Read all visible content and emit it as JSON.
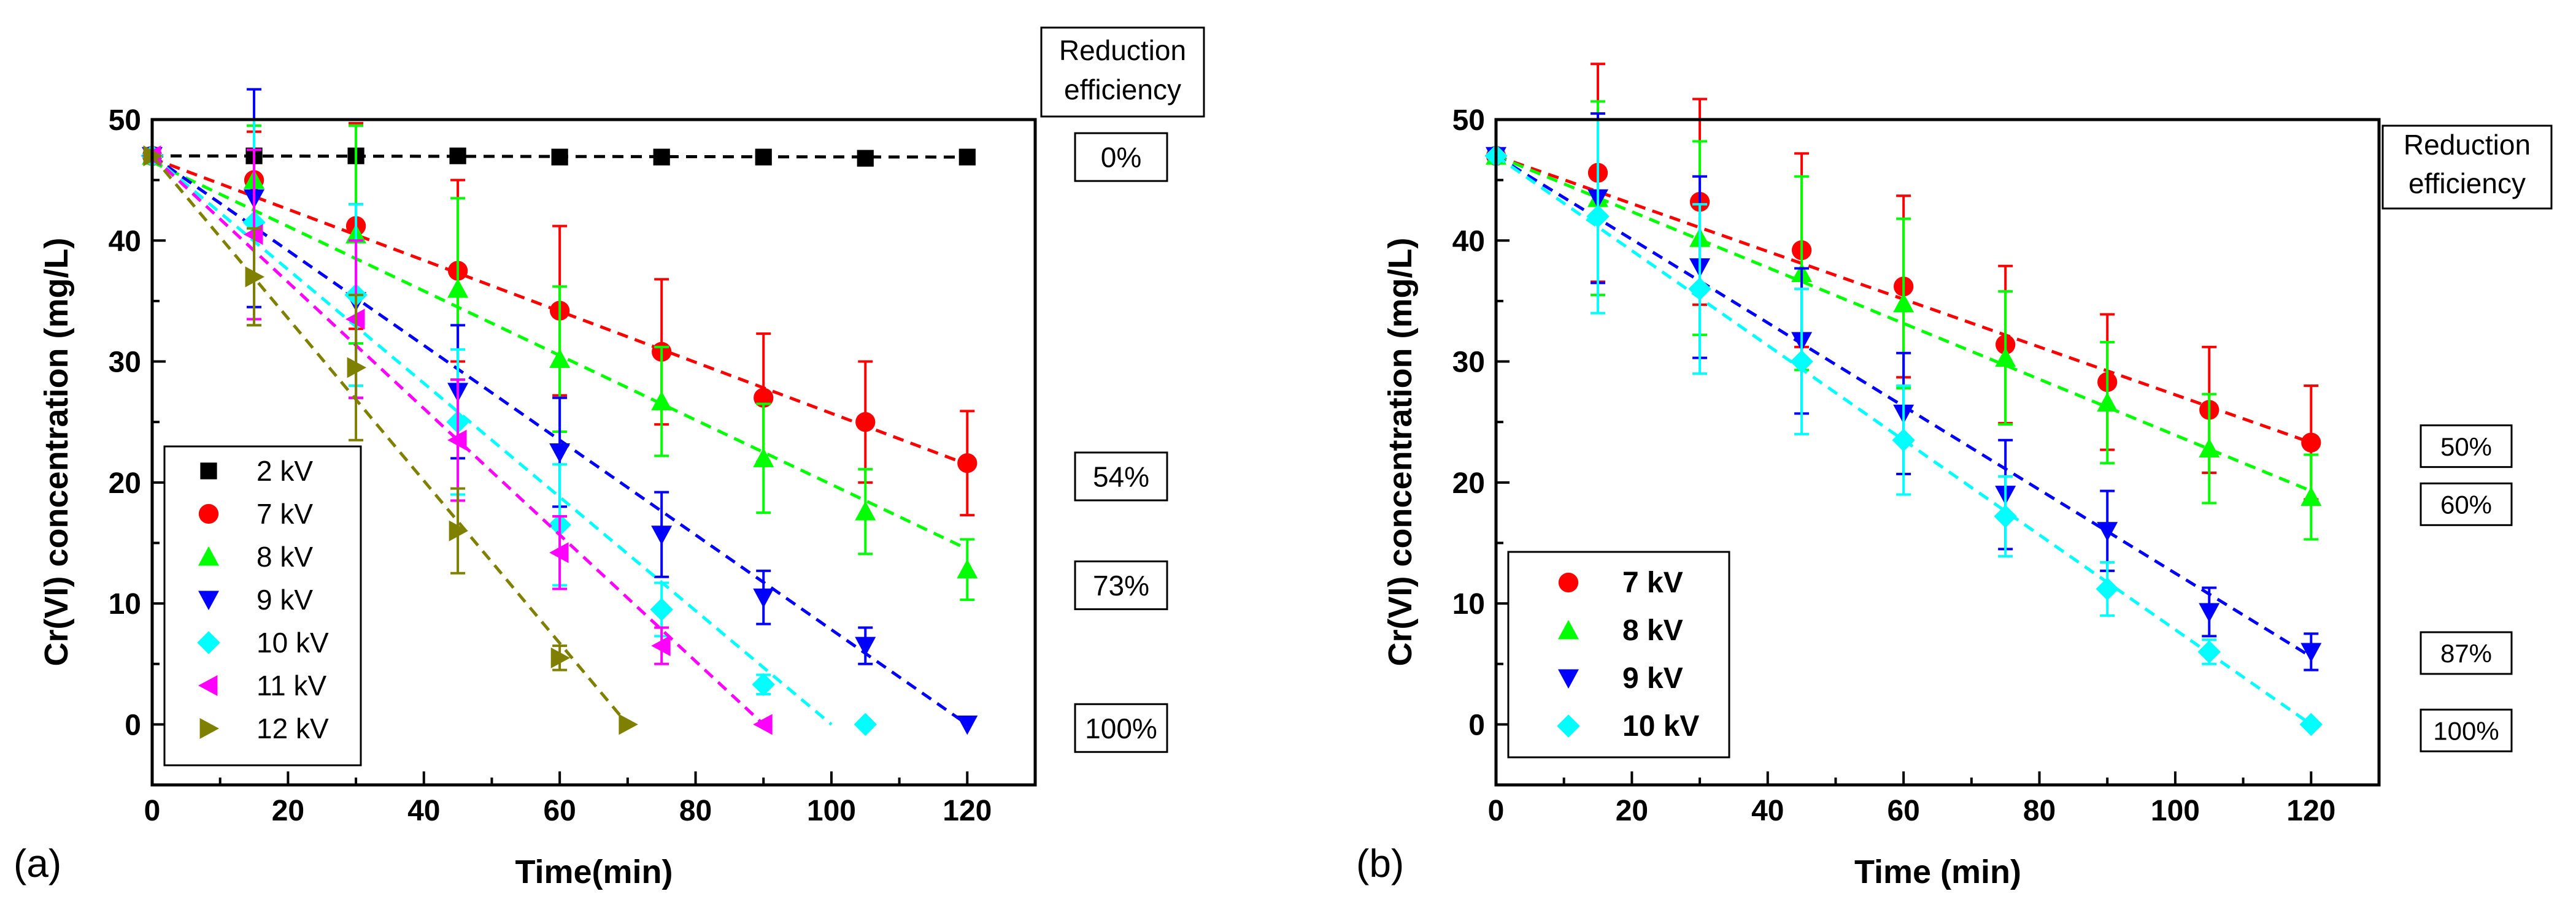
{
  "chart_data": [
    {
      "type": "scatter",
      "panel_label": "(a)",
      "xlabel": "Time(min)",
      "ylabel": "Cr(VI) concentration (mg/L)",
      "xlim": [
        0,
        130
      ],
      "ylim": [
        -5,
        50
      ],
      "xticks": [
        "0",
        "20",
        "40",
        "60",
        "80",
        "100",
        "120"
      ],
      "yticks": [
        "0",
        "10",
        "20",
        "30",
        "40",
        "50"
      ],
      "efficiency_header": [
        "Reduction",
        "efficiency"
      ],
      "series": [
        {
          "name": "2 kV",
          "marker": "square",
          "color": "#000000",
          "x": [
            0,
            15,
            30,
            45,
            60,
            75,
            90,
            105,
            120
          ],
          "y": [
            47,
            47,
            47,
            47,
            46.9,
            46.9,
            46.9,
            46.8,
            46.9
          ],
          "err": [
            0,
            0,
            0,
            0,
            0,
            0,
            0,
            0,
            0
          ],
          "fit": [
            [
              0,
              47
            ],
            [
              120,
              46.9
            ]
          ]
        },
        {
          "name": "7 kV",
          "marker": "circle",
          "color": "#ff0000",
          "x": [
            0,
            15,
            30,
            45,
            60,
            75,
            90,
            105,
            120
          ],
          "y": [
            47,
            45,
            41.2,
            37.5,
            34.2,
            30.8,
            27,
            25,
            21.6
          ],
          "err": [
            0,
            4,
            8.5,
            7.5,
            7,
            6,
            5.3,
            5,
            4.3
          ],
          "fit": [
            [
              0,
              46.8
            ],
            [
              120,
              21.5
            ]
          ]
        },
        {
          "name": "8 kV",
          "marker": "triangle-up",
          "color": "#00ff00",
          "x": [
            0,
            15,
            30,
            45,
            60,
            75,
            90,
            105,
            120
          ],
          "y": [
            47,
            45,
            40.5,
            36,
            30.2,
            26.7,
            22,
            17.6,
            12.8
          ],
          "err": [
            0,
            4.5,
            9,
            7.5,
            6,
            4.5,
            4.5,
            3.5,
            2.5
          ],
          "fit": [
            [
              0,
              46.5
            ],
            [
              120,
              14.5
            ]
          ]
        },
        {
          "name": "9 kV",
          "marker": "triangle-down",
          "color": "#0000ff",
          "x": [
            0,
            15,
            30,
            45,
            60,
            75,
            90,
            105,
            120
          ],
          "y": [
            47,
            43.5,
            35,
            27.5,
            22.5,
            15.7,
            10.5,
            6.5,
            0
          ],
          "err": [
            0,
            9,
            8,
            5.5,
            4.5,
            3.5,
            2.2,
            1.5,
            0
          ],
          "fit": [
            [
              0,
              47
            ],
            [
              120,
              0
            ]
          ]
        },
        {
          "name": "10 kV",
          "marker": "diamond",
          "color": "#00ffff",
          "x": [
            0,
            15,
            30,
            45,
            60,
            75,
            90,
            105
          ],
          "y": [
            47,
            41.5,
            35.5,
            25,
            16.5,
            9.5,
            3.3,
            0
          ],
          "err": [
            0,
            8.5,
            7.5,
            6,
            5,
            2.2,
            0.8,
            0
          ],
          "fit": [
            [
              0,
              47
            ],
            [
              100,
              0
            ]
          ]
        },
        {
          "name": "11 kV",
          "marker": "triangle-left",
          "color": "#ff00ff",
          "x": [
            0,
            15,
            30,
            45,
            60,
            75,
            90
          ],
          "y": [
            47,
            40.5,
            33.5,
            23.5,
            14.2,
            6.5,
            0
          ],
          "err": [
            0,
            7,
            6.5,
            5,
            3,
            1.5,
            0
          ],
          "fit": [
            [
              0,
              47
            ],
            [
              90,
              0
            ]
          ]
        },
        {
          "name": "12 kV",
          "marker": "triangle-right",
          "color": "#808000",
          "x": [
            0,
            15,
            30,
            45,
            60,
            70
          ],
          "y": [
            47,
            37,
            29.5,
            16,
            5.5,
            0
          ],
          "err": [
            0,
            4,
            6,
            3.5,
            1,
            0
          ],
          "fit": [
            [
              0,
              47
            ],
            [
              70,
              0
            ]
          ]
        }
      ],
      "efficiency_labels": [
        {
          "text": "0%",
          "y": 46.9
        },
        {
          "text": "54%",
          "y": 20.5
        },
        {
          "text": "73%",
          "y": 11.5
        },
        {
          "text": "100%",
          "y": -0.3
        }
      ]
    },
    {
      "type": "scatter",
      "panel_label": "(b)",
      "xlabel": "Time (min)",
      "ylabel": "Cr(VI) concentration (mg/L)",
      "xlim": [
        0,
        130
      ],
      "ylim": [
        -5,
        50
      ],
      "xticks": [
        "0",
        "20",
        "40",
        "60",
        "80",
        "100",
        "120"
      ],
      "yticks": [
        "0",
        "10",
        "20",
        "30",
        "40",
        "50"
      ],
      "efficiency_header": [
        "Reduction",
        "efficiency"
      ],
      "series": [
        {
          "name": "7 kV",
          "marker": "circle",
          "color": "#ff0000",
          "x": [
            0,
            15,
            30,
            45,
            60,
            75,
            90,
            105,
            120
          ],
          "y": [
            47,
            45.6,
            43.2,
            39.2,
            36.2,
            31.4,
            28.3,
            26,
            23.3
          ],
          "err": [
            0,
            9,
            8.5,
            8,
            7.5,
            6.5,
            5.6,
            5.2,
            4.7
          ],
          "fit": [
            [
              0,
              47
            ],
            [
              120,
              23.3
            ]
          ]
        },
        {
          "name": "8 kV",
          "marker": "triangle-up",
          "color": "#00ff00",
          "x": [
            0,
            15,
            30,
            45,
            60,
            75,
            90,
            105,
            120
          ],
          "y": [
            47,
            43.5,
            40.2,
            37.3,
            34.8,
            30.3,
            26.6,
            22.8,
            18.8
          ],
          "err": [
            0,
            8,
            8,
            8,
            7,
            5.5,
            5,
            4.5,
            3.5
          ],
          "fit": [
            [
              0,
              47
            ],
            [
              120,
              19.3
            ]
          ]
        },
        {
          "name": "9 kV",
          "marker": "triangle-down",
          "color": "#0000ff",
          "x": [
            0,
            15,
            30,
            45,
            60,
            75,
            90,
            105,
            120
          ],
          "y": [
            47,
            43.5,
            37.8,
            31.7,
            25.7,
            19,
            16,
            9.3,
            6
          ],
          "err": [
            0,
            7,
            7.5,
            6,
            5,
            4.5,
            3.3,
            2,
            1.5
          ],
          "fit": [
            [
              0,
              47
            ],
            [
              120,
              5.6
            ]
          ]
        },
        {
          "name": "10 kV",
          "marker": "diamond",
          "color": "#00ffff",
          "x": [
            0,
            15,
            30,
            45,
            60,
            75,
            90,
            105,
            120
          ],
          "y": [
            47,
            42,
            36,
            30,
            23.5,
            17.2,
            11.2,
            6,
            0
          ],
          "err": [
            0,
            8,
            7,
            6,
            4.5,
            3.3,
            2.2,
            1,
            0
          ],
          "fit": [
            [
              0,
              47
            ],
            [
              120,
              0
            ]
          ]
        }
      ],
      "efficiency_labels": [
        {
          "text": "50%",
          "y": 23
        },
        {
          "text": "60%",
          "y": 18.2
        },
        {
          "text": "87%",
          "y": 5.9
        },
        {
          "text": "100%",
          "y": -0.5
        }
      ]
    }
  ]
}
